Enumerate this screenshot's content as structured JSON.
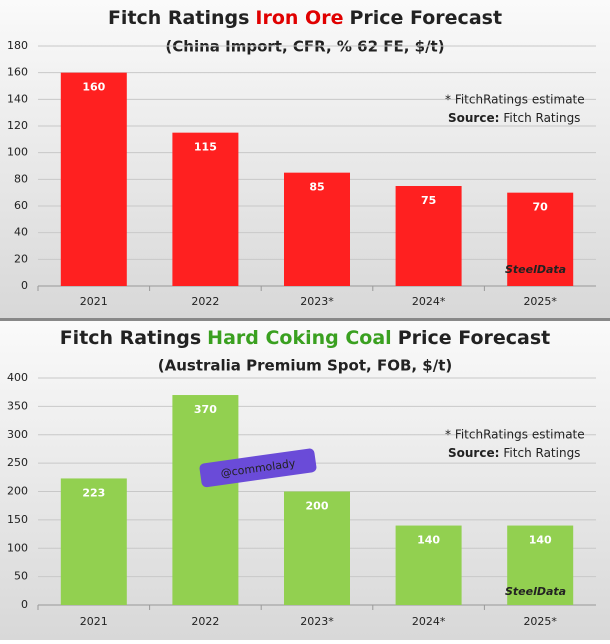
{
  "chart_data": [
    {
      "type": "bar",
      "title": [
        "Fitch Ratings",
        "Iron Ore",
        "Price Forecast"
      ],
      "title_highlight_color": "#e00000",
      "subtitle": "(China Import, CFR, % 62 FE, $/t)",
      "notes": [
        "* FitchRatings estimate",
        "Source:",
        "Fitch Ratings"
      ],
      "watermark": "SteelData",
      "categories": [
        "2021",
        "2022",
        "2023*",
        "2024*",
        "2025*"
      ],
      "values": [
        160,
        115,
        85,
        75,
        70
      ],
      "color": "#ff2020",
      "ylim": [
        0,
        180
      ],
      "yticks": [
        0,
        20,
        40,
        60,
        80,
        100,
        120,
        140,
        160,
        180
      ],
      "grid": true
    },
    {
      "type": "bar",
      "title": [
        "Fitch Ratings",
        "Hard Coking Coal",
        "Price Forecast"
      ],
      "title_highlight_color": "#3aa020",
      "subtitle": "(Australia Premium Spot, FOB, $/t)",
      "notes": [
        "* FitchRatings estimate",
        "Source:",
        "Fitch Ratings"
      ],
      "watermark": "SteelData",
      "badge": "@commolady",
      "categories": [
        "2021",
        "2022",
        "2023*",
        "2024*",
        "2025*"
      ],
      "values": [
        223,
        370,
        200,
        140,
        140
      ],
      "color": "#92d050",
      "ylim": [
        0,
        400
      ],
      "yticks": [
        0,
        50,
        100,
        150,
        200,
        250,
        300,
        350,
        400
      ],
      "grid": true
    }
  ]
}
